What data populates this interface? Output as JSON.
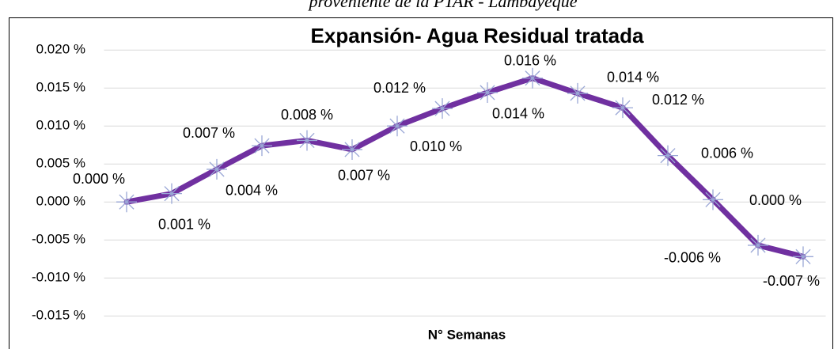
{
  "chart_data": {
    "type": "line",
    "caption": "proveniente de la PTAR - Lambayeque",
    "title": "Expansión- Agua Residual tratada",
    "x_label": "N° Semanas",
    "categories": [
      null,
      null,
      null,
      null,
      null,
      null,
      null,
      null,
      null,
      null,
      null,
      null,
      null,
      null,
      null,
      null
    ],
    "series": [
      {
        "color": "#7030a0",
        "marker_color": "#9aa7d6",
        "values": [
          0,
          0.0011,
          0.0043,
          0.0074,
          0.0081,
          0.0069,
          0.01,
          0.0123,
          0.0144,
          0.0163,
          0.0143,
          0.0124,
          0.0061,
          0.0003,
          -0.0057,
          -0.0072
        ],
        "value_labels": [
          "0.000 %",
          "0.001 %",
          "0.004 %",
          "0.007 %",
          "0.008 %",
          "0.007 %",
          "0.010 %",
          "0.012 %",
          "0.014 %",
          "0.016 %",
          "0.014 %",
          "0.012 %",
          "0.006 %",
          "0.000 %",
          "-0.006 %",
          "-0.007 %"
        ]
      }
    ],
    "ylim": [
      -0.0155,
      0.0205
    ],
    "yticks": [
      {
        "value": -0.015,
        "label": "-0.015 %"
      },
      {
        "value": -0.01,
        "label": "-0.010 %"
      },
      {
        "value": -0.005,
        "label": "-0.005 %"
      },
      {
        "value": 0,
        "label": "0.000 %"
      },
      {
        "value": 0.005,
        "label": "0.005 %"
      },
      {
        "value": 0.01,
        "label": "0.010 %"
      },
      {
        "value": 0.015,
        "label": "0.015 %"
      },
      {
        "value": 0.02,
        "label": "0.020 %"
      }
    ],
    "grid": true
  }
}
